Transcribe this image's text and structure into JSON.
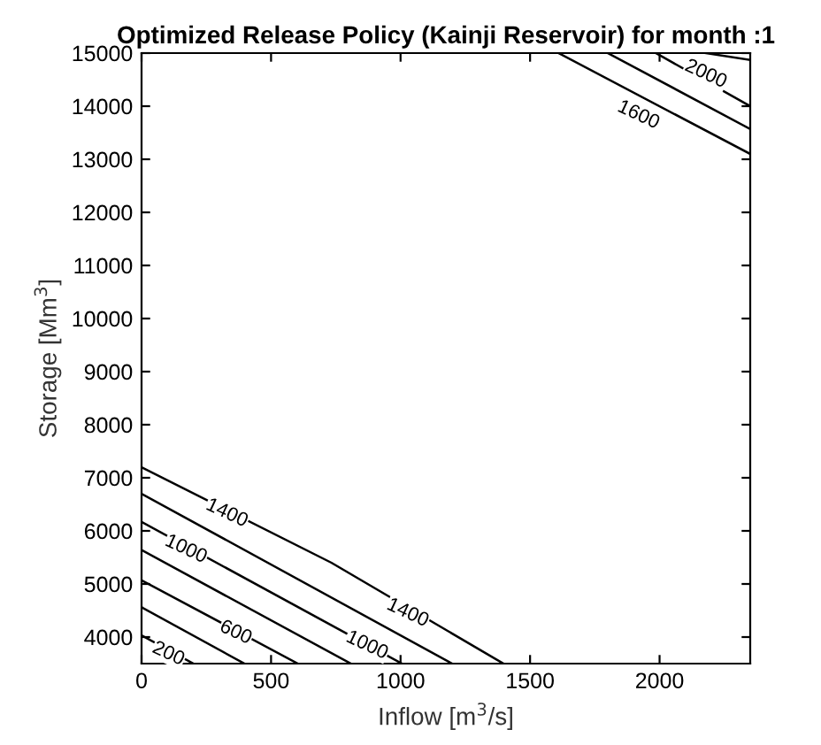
{
  "chart_data": {
    "type": "line",
    "title": "Optimized Release Policy (Kainji Reservoir) for month :1",
    "xlabel": "Inflow [m$^{3}$/s]",
    "ylabel": "Storage [Mm$^{3}$]",
    "series": [
      {
        "color": "#000000",
        "x": [
          0,
          200
        ],
        "values": [
          4030,
          3500
        ]
      },
      {
        "color": "#000000",
        "x": [
          0,
          397
        ],
        "values": [
          4560,
          3500
        ]
      },
      {
        "color": "#000000",
        "x": [
          0,
          603
        ],
        "values": [
          5070,
          3500
        ]
      },
      {
        "color": "#000000",
        "x": [
          0,
          808
        ],
        "values": [
          5640,
          3500
        ]
      },
      {
        "color": "#000000",
        "x": [
          0,
          1005
        ],
        "values": [
          6170,
          3500
        ]
      },
      {
        "color": "#000000",
        "x": [
          0,
          1199
        ],
        "values": [
          6700,
          3500
        ]
      },
      {
        "color": "#000000",
        "x": [
          0,
          733,
          1397
        ],
        "values": [
          7200,
          5400,
          3500
        ]
      },
      {
        "color": "#000000",
        "x": [
          1610,
          2350
        ],
        "values": [
          15000,
          13100
        ]
      },
      {
        "color": "#000000",
        "x": [
          1800,
          2350
        ],
        "values": [
          15000,
          13570
        ]
      },
      {
        "color": "#000000",
        "x": [
          1986,
          2350
        ],
        "values": [
          15000,
          14000
        ]
      },
      {
        "color": "#000000",
        "x": [
          2178,
          2350
        ],
        "values": [
          15000,
          14870
        ]
      }
    ],
    "annotations": [
      {
        "text": "200",
        "x": 103,
        "y": 3680
      },
      {
        "text": "600",
        "x": 363,
        "y": 4080
      },
      {
        "text": "1000",
        "x": 171,
        "y": 5650
      },
      {
        "text": "1000",
        "x": 870,
        "y": 3840
      },
      {
        "text": "1400",
        "x": 329,
        "y": 6330
      },
      {
        "text": "1400",
        "x": 1027,
        "y": 4450
      },
      {
        "text": "1600",
        "x": 1918,
        "y": 13830
      },
      {
        "text": "2000",
        "x": 2178,
        "y": 14600
      }
    ],
    "xlim": [
      0,
      2350
    ],
    "ylim": [
      3500,
      15000
    ],
    "xticks": [
      0,
      500,
      1000,
      1500,
      2000
    ],
    "yticks": [
      4000,
      5000,
      6000,
      7000,
      8000,
      9000,
      10000,
      11000,
      12000,
      13000,
      14000,
      15000
    ],
    "grid": false,
    "legend": false
  }
}
